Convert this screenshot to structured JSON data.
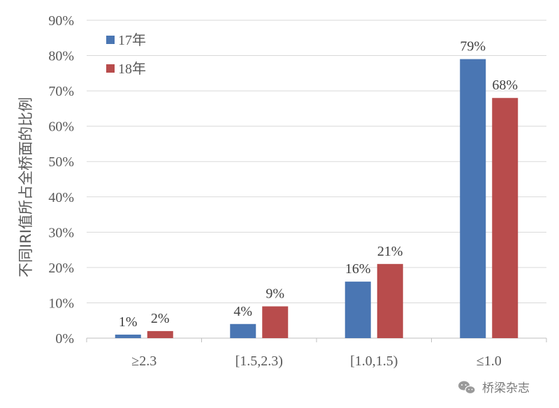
{
  "chart_data": {
    "type": "bar",
    "categories": [
      "≥2.3",
      "[1.5,2.3)",
      "[1.0,1.5)",
      "≤1.0"
    ],
    "series": [
      {
        "name": "17年",
        "values": [
          1,
          4,
          16,
          79
        ],
        "labels": [
          "1%",
          "4%",
          "16%",
          "79%"
        ],
        "color": "#4a76b3"
      },
      {
        "name": "18年",
        "values": [
          2,
          9,
          21,
          68
        ],
        "labels": [
          "2%",
          "9%",
          "21%",
          "68%"
        ],
        "color": "#b84c4c"
      }
    ],
    "xlabel": "",
    "ylabel": "不同IRI值所占全桥面的比例",
    "ylim": [
      0,
      90
    ],
    "yticks": [
      "0%",
      "10%",
      "20%",
      "30%",
      "40%",
      "50%",
      "60%",
      "70%",
      "80%",
      "90%"
    ],
    "grid": true,
    "legend_position": "top-left"
  },
  "watermark": {
    "text": "桥梁杂志",
    "icon": "wechat-icon"
  }
}
